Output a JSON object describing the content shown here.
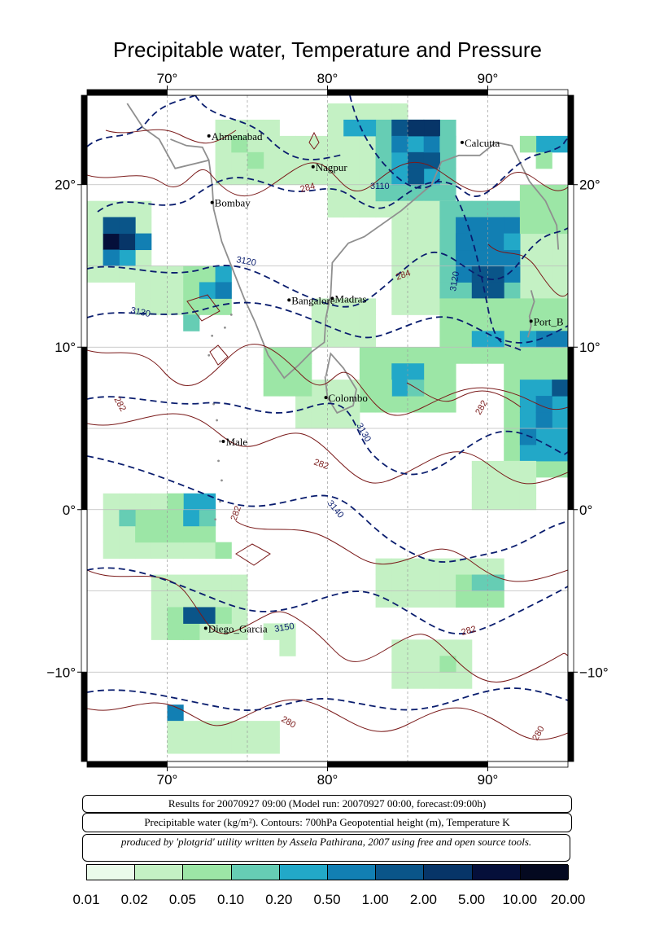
{
  "title": "Precipitable water, Temperature and Pressure",
  "axes": {
    "x_ticks": [
      "70°",
      "80°",
      "90°"
    ],
    "y_ticks": [
      "20°",
      "10°",
      "0°",
      "−10°"
    ]
  },
  "cities": [
    {
      "name": "Ahmenabad"
    },
    {
      "name": "Nagpur"
    },
    {
      "name": "Calcutta"
    },
    {
      "name": "Bombay"
    },
    {
      "name": "Bangalore"
    },
    {
      "name": "Madras"
    },
    {
      "name": "Port_B"
    },
    {
      "name": "Colombo"
    },
    {
      "name": "Male"
    },
    {
      "name": "Diego_Garcia"
    }
  ],
  "contour_labels": {
    "geopotential": [
      "3110",
      "3120",
      "3130",
      "3120",
      "3130",
      "3140",
      "3150"
    ],
    "temperature": [
      "284",
      "284",
      "282",
      "282",
      "282",
      "282",
      "282",
      "280",
      "280"
    ]
  },
  "info": {
    "results": "Results for 20070927 09:00 (Model run: 20070927 00:00, forecast:09:00h)",
    "legend_desc": "Precipitable water (kg/m²).  Contours: 700hPa Geopotential height (m), Temperature K",
    "credit": "produced by 'plotgrid' utility written by Assela Pathirana, 2007 using free and open source tools."
  },
  "colorbar": {
    "labels": [
      "0.01",
      "0.02",
      "0.05",
      "0.10",
      "0.20",
      "0.50",
      "1.00",
      "2.00",
      "5.00",
      "10.00",
      "20.00"
    ],
    "colors": [
      "#eafaea",
      "#c4f1c4",
      "#9ce6a6",
      "#66cdb4",
      "#22a8c8",
      "#127fb3",
      "#0a5589",
      "#073568",
      "#050f3a",
      "#040920"
    ]
  }
}
